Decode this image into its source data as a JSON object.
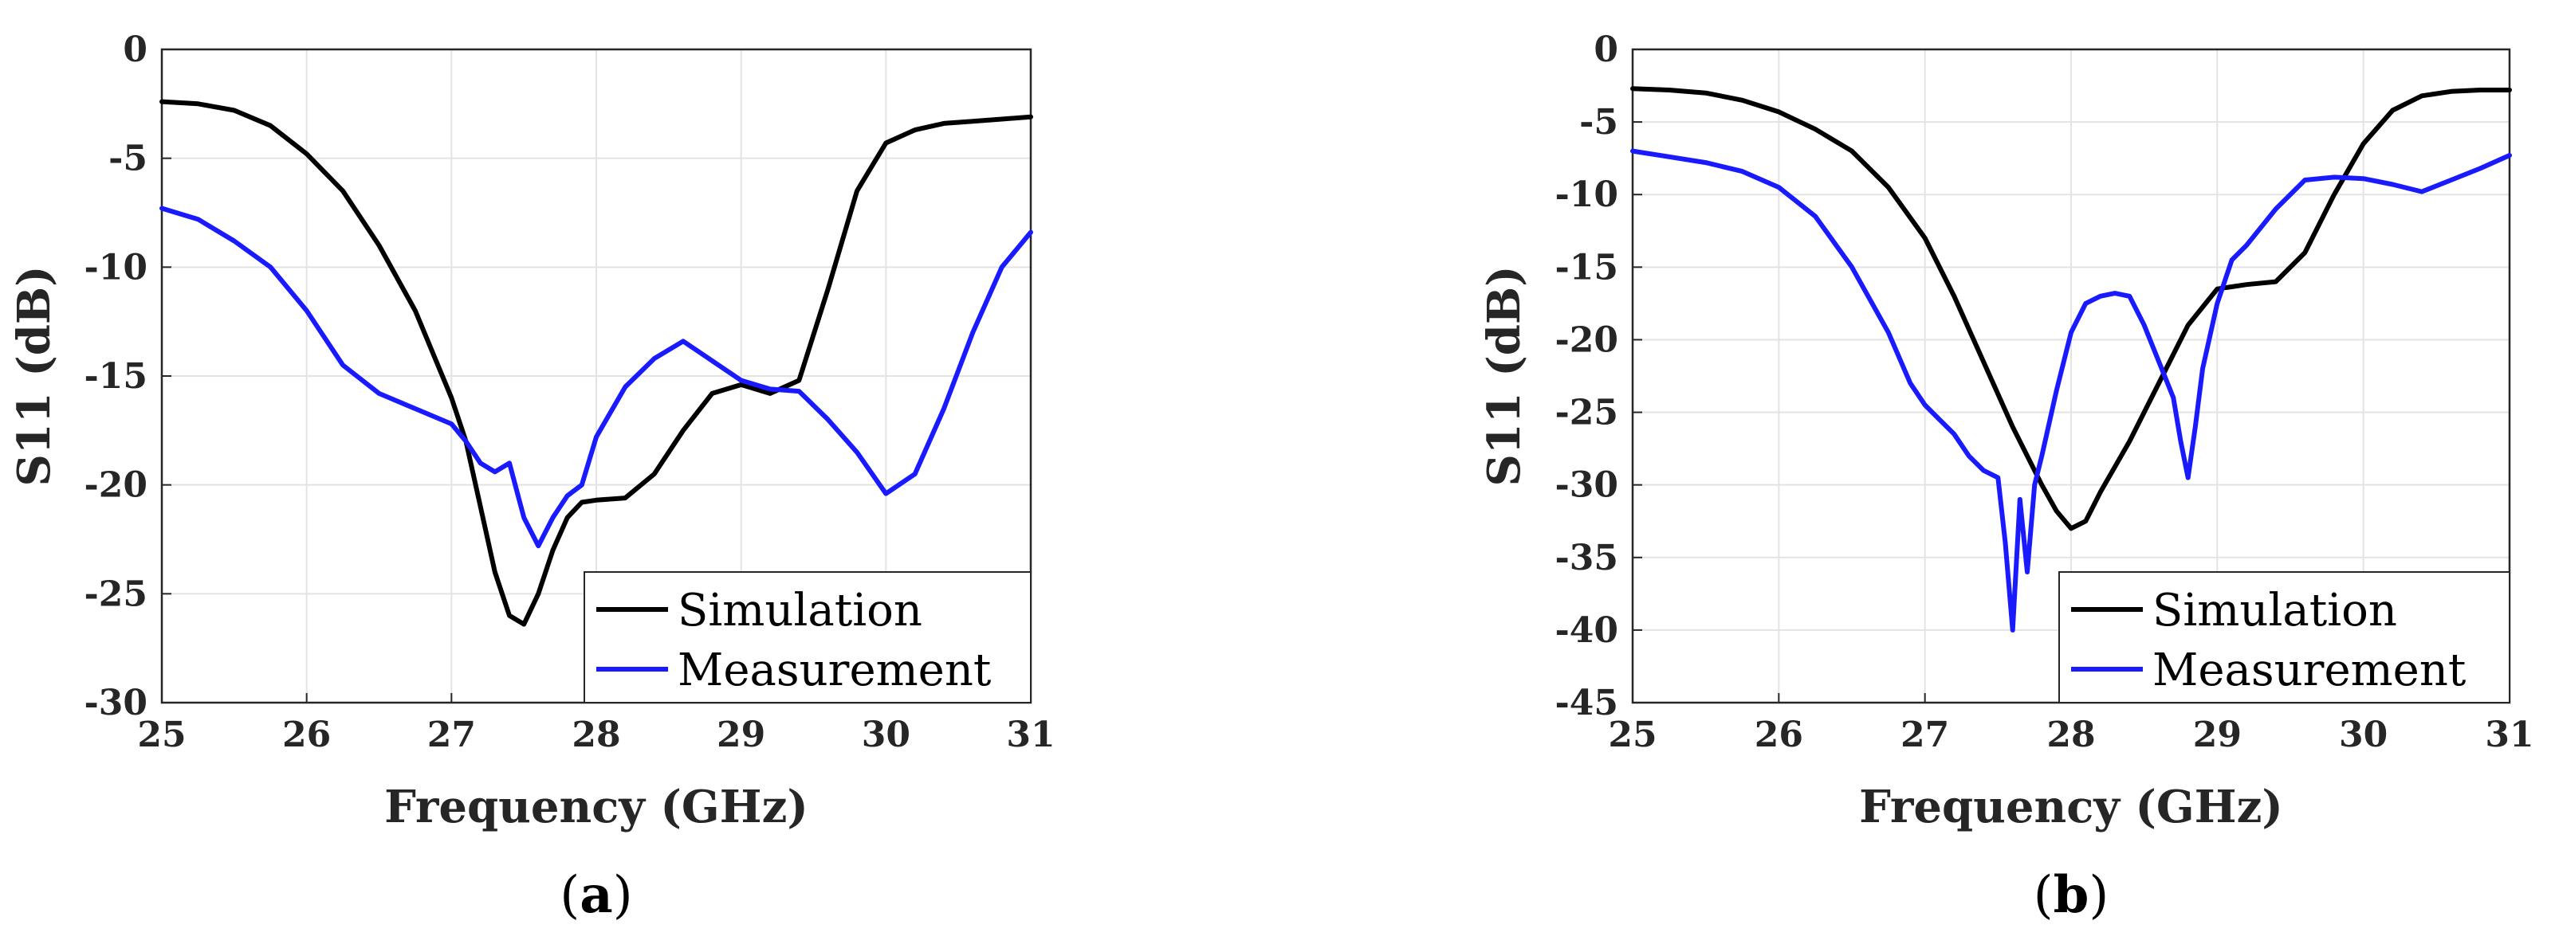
{
  "chart_data": [
    {
      "type": "line",
      "panel_label": "a",
      "xlabel": "Frequency (GHz)",
      "ylabel": "S11 (dB)",
      "xlim": [
        25,
        31
      ],
      "ylim": [
        -30,
        0
      ],
      "xticks": [
        "25",
        "26",
        "27",
        "28",
        "29",
        "30",
        "31"
      ],
      "yticks": [
        "0",
        "-5",
        "-10",
        "-15",
        "-20",
        "-25",
        "-30"
      ],
      "grid": true,
      "legend_position": "bottom-right",
      "series": [
        {
          "name": "Simulation",
          "color": "#000000",
          "x": [
            25.0,
            25.25,
            25.5,
            25.75,
            26.0,
            26.25,
            26.5,
            26.75,
            27.0,
            27.1,
            27.2,
            27.3,
            27.4,
            27.5,
            27.6,
            27.7,
            27.8,
            27.9,
            28.0,
            28.2,
            28.4,
            28.6,
            28.8,
            29.0,
            29.2,
            29.4,
            29.6,
            29.8,
            30.0,
            30.2,
            30.4,
            30.6,
            30.8,
            31.0
          ],
          "y": [
            -2.4,
            -2.5,
            -2.8,
            -3.5,
            -4.8,
            -6.5,
            -9.0,
            -12.0,
            -16.0,
            -18.0,
            -21.0,
            -24.0,
            -26.0,
            -26.4,
            -25.0,
            -23.0,
            -21.5,
            -20.8,
            -20.7,
            -20.6,
            -19.5,
            -17.5,
            -15.8,
            -15.4,
            -15.8,
            -15.2,
            -11.0,
            -6.5,
            -4.3,
            -3.7,
            -3.4,
            -3.3,
            -3.2,
            -3.1
          ]
        },
        {
          "name": "Measurement",
          "color": "#1a1aff",
          "x": [
            25.0,
            25.25,
            25.5,
            25.75,
            26.0,
            26.25,
            26.5,
            26.75,
            27.0,
            27.1,
            27.2,
            27.3,
            27.4,
            27.5,
            27.6,
            27.7,
            27.8,
            27.9,
            28.0,
            28.2,
            28.4,
            28.6,
            28.8,
            29.0,
            29.2,
            29.4,
            29.6,
            29.8,
            30.0,
            30.2,
            30.4,
            30.6,
            30.8,
            31.0
          ],
          "y": [
            -7.3,
            -7.8,
            -8.8,
            -10.0,
            -12.0,
            -14.5,
            -15.8,
            -16.5,
            -17.2,
            -18.0,
            -19.0,
            -19.4,
            -19.0,
            -21.5,
            -22.8,
            -21.5,
            -20.5,
            -20.0,
            -17.8,
            -15.5,
            -14.2,
            -13.4,
            -14.3,
            -15.2,
            -15.6,
            -15.7,
            -17.0,
            -18.5,
            -20.4,
            -19.5,
            -16.5,
            -13.0,
            -10.0,
            -8.4
          ]
        }
      ]
    },
    {
      "type": "line",
      "panel_label": "b",
      "xlabel": "Frequency (GHz)",
      "ylabel": "S11 (dB)",
      "xlim": [
        25,
        31
      ],
      "ylim": [
        -45,
        0
      ],
      "xticks": [
        "25",
        "26",
        "27",
        "28",
        "29",
        "30",
        "31"
      ],
      "yticks": [
        "0",
        "-5",
        "-10",
        "-15",
        "-20",
        "-25",
        "-30",
        "-35",
        "-40",
        "-45"
      ],
      "grid": true,
      "legend_position": "bottom-right",
      "series": [
        {
          "name": "Simulation",
          "color": "#000000",
          "x": [
            25.0,
            25.25,
            25.5,
            25.75,
            26.0,
            26.25,
            26.5,
            26.75,
            27.0,
            27.2,
            27.4,
            27.6,
            27.8,
            27.9,
            28.0,
            28.1,
            28.2,
            28.4,
            28.6,
            28.8,
            29.0,
            29.2,
            29.4,
            29.6,
            29.8,
            30.0,
            30.2,
            30.4,
            30.6,
            30.8,
            31.0
          ],
          "y": [
            -2.7,
            -2.8,
            -3.0,
            -3.5,
            -4.3,
            -5.5,
            -7.0,
            -9.5,
            -13.0,
            -17.0,
            -21.5,
            -26.0,
            -30.0,
            -31.8,
            -33.0,
            -32.5,
            -30.5,
            -27.0,
            -23.0,
            -19.0,
            -16.5,
            -16.2,
            -16.0,
            -14.0,
            -10.0,
            -6.5,
            -4.2,
            -3.2,
            -2.9,
            -2.8,
            -2.8
          ]
        },
        {
          "name": "Measurement",
          "color": "#1a1aff",
          "x": [
            25.0,
            25.25,
            25.5,
            25.75,
            26.0,
            26.25,
            26.5,
            26.75,
            26.9,
            27.0,
            27.1,
            27.2,
            27.3,
            27.4,
            27.5,
            27.55,
            27.6,
            27.65,
            27.7,
            27.75,
            27.8,
            27.9,
            28.0,
            28.1,
            28.2,
            28.3,
            28.4,
            28.5,
            28.6,
            28.7,
            28.75,
            28.8,
            28.85,
            28.9,
            29.0,
            29.1,
            29.2,
            29.4,
            29.6,
            29.8,
            30.0,
            30.2,
            30.4,
            30.6,
            30.8,
            31.0
          ],
          "y": [
            -7.0,
            -7.4,
            -7.8,
            -8.4,
            -9.5,
            -11.5,
            -15.0,
            -19.5,
            -23.0,
            -24.5,
            -25.5,
            -26.5,
            -28.0,
            -29.0,
            -29.5,
            -34.0,
            -40.0,
            -31.0,
            -36.0,
            -30.0,
            -28.0,
            -23.5,
            -19.5,
            -17.5,
            -17.0,
            -16.8,
            -17.0,
            -19.0,
            -21.5,
            -24.0,
            -27.0,
            -29.5,
            -26.0,
            -22.0,
            -17.5,
            -14.5,
            -13.5,
            -11.0,
            -9.0,
            -8.8,
            -8.9,
            -9.3,
            -9.8,
            -9.0,
            -8.2,
            -7.3
          ]
        }
      ]
    }
  ]
}
